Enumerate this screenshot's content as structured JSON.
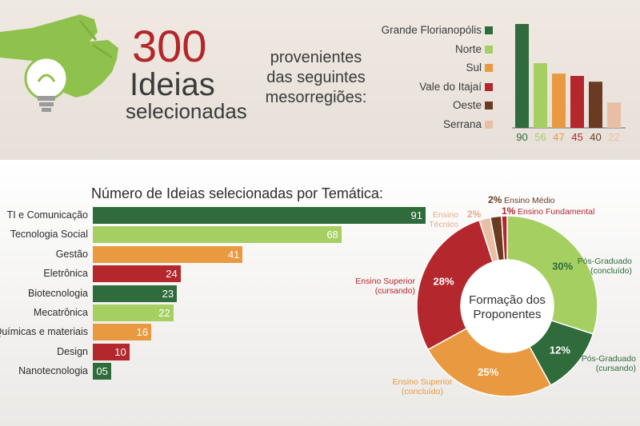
{
  "header": {
    "big_number": "300",
    "line1": "Ideias",
    "line2": "selecionadas",
    "regions_caption": [
      "provenientes",
      "das seguintes",
      "mesorregiões:"
    ]
  },
  "icon": "hand-holding-lightbulb-icon",
  "colors": {
    "dark_green": "#2f6b3b",
    "light_green": "#a6cf62",
    "orange": "#e9993f",
    "red": "#b3272d",
    "brown": "#6b3a22",
    "peach": "#e8bfa4"
  },
  "chart_data": [
    {
      "type": "bar",
      "title": "",
      "categories": [
        "Grande Florianopólis",
        "Norte",
        "Sul",
        "Vale do Itajaí",
        "Oeste",
        "Serrana"
      ],
      "values": [
        90,
        56,
        47,
        45,
        40,
        22
      ],
      "value_labels": [
        "90",
        "56",
        "47",
        "45",
        "40",
        "22"
      ],
      "colors": [
        "#2f6b3b",
        "#a6cf62",
        "#e9993f",
        "#b3272d",
        "#6b3a22",
        "#e8bfa4"
      ],
      "ylim": [
        0,
        90
      ],
      "legend": "left"
    },
    {
      "type": "bar",
      "orientation": "horizontal",
      "title": "Número de Ideias selecionadas por Temática:",
      "categories": [
        "TI e Comunicação",
        "Tecnologia Social",
        "Gestão",
        "Eletrônica",
        "Biotecnologia",
        "Mecatrônica",
        "Químicas e materiais",
        "Design",
        "Nanotecnologia"
      ],
      "values": [
        91,
        68,
        41,
        24,
        23,
        22,
        16,
        10,
        5
      ],
      "value_labels": [
        "91",
        "68",
        "41",
        "24",
        "23",
        "22",
        "16",
        "10",
        "05"
      ],
      "colors": [
        "#2f6b3b",
        "#a6cf62",
        "#e9993f",
        "#b3272d",
        "#2f6b3b",
        "#a6cf62",
        "#e9993f",
        "#b3272d",
        "#2f6b3b"
      ],
      "xlim": [
        0,
        91
      ]
    },
    {
      "type": "pie",
      "donut": true,
      "center_label": [
        "Formação dos",
        "Proponentes"
      ],
      "slices": [
        {
          "label": "Pós-Graduado (concluído)",
          "value": 30,
          "pct": "30%",
          "color": "#a6cf62"
        },
        {
          "label": "Pós-Graduado (cursando)",
          "value": 12,
          "pct": "12%",
          "color": "#2f6b3b"
        },
        {
          "label": "Ensino Superior (concluído)",
          "value": 25,
          "pct": "25%",
          "color": "#e9993f"
        },
        {
          "label": "Ensino Superior (cursando)",
          "value": 28,
          "pct": "28%",
          "color": "#b3272d"
        },
        {
          "label": "Ensino Técnico",
          "value": 2,
          "pct": "2%",
          "color": "#e8bfa4"
        },
        {
          "label": "Ensino Médio",
          "value": 2,
          "pct": "2%",
          "color": "#6b3a22"
        },
        {
          "label": "Ensino Fundamental",
          "value": 1,
          "pct": "1%",
          "color": "#b3272d"
        }
      ],
      "outside_labels": {
        "pos_concluido": [
          "Pós-Graduado",
          "(concluído)"
        ],
        "pos_cursando": [
          "Pós-Graduado",
          "(cursando)"
        ],
        "sup_concluido": [
          "Ensino Superior",
          "(concluído)"
        ],
        "sup_cursando": [
          "Ensino Superior",
          "(cursando)"
        ],
        "tecnico": [
          "Ensino",
          "Técnico"
        ],
        "medio": "Ensino Médio",
        "fundamental": "Ensino Fundamental"
      }
    }
  ]
}
